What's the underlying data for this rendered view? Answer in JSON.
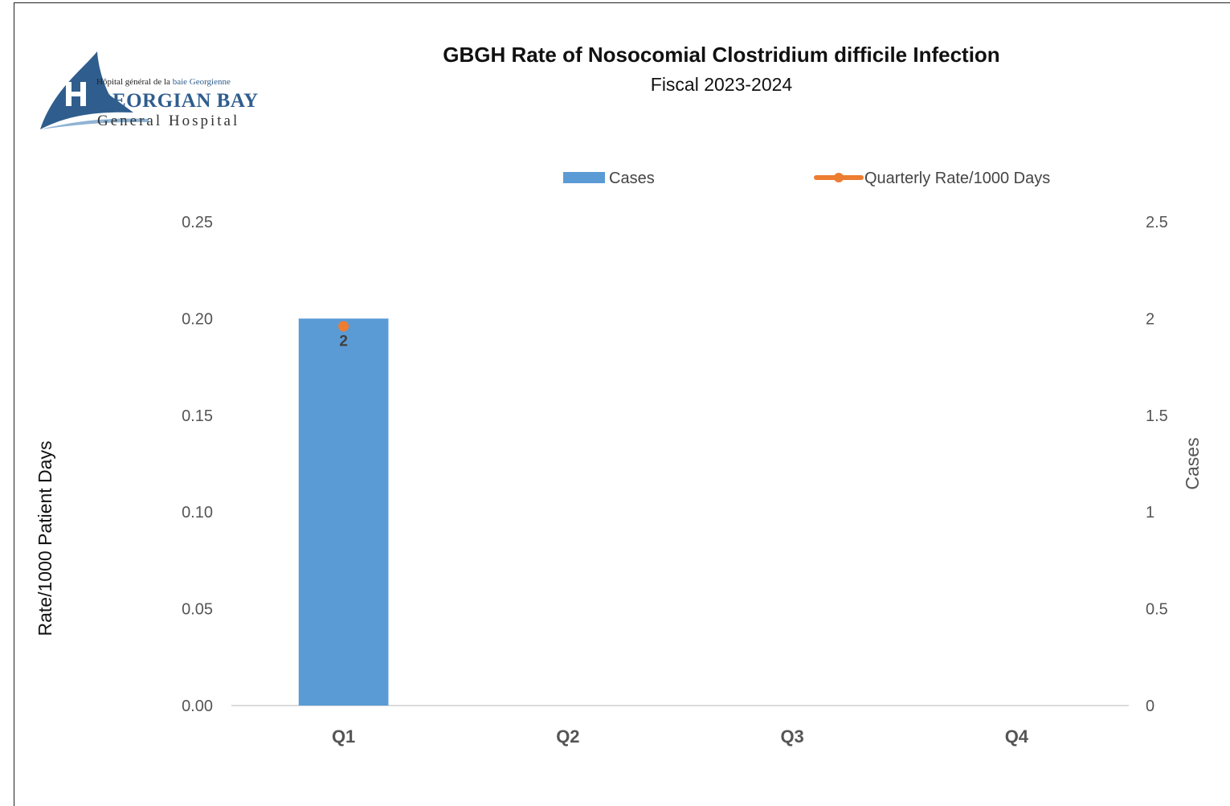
{
  "logo": {
    "line1_prefix": "Hôpital général de la ",
    "line1_accent": "baie Georgienne",
    "line2": "GEORGIAN BAY",
    "line3": "General Hospital",
    "brand_color": "#2f5e8e"
  },
  "chart_data": {
    "type": "bar",
    "title": "GBGH Rate of Nosocomial Clostridium difficile Infection",
    "subtitle": "Fiscal 2023-2024",
    "categories": [
      "Q1",
      "Q2",
      "Q3",
      "Q4"
    ],
    "ylabel_left": "Rate/1000 Patient Days",
    "ylabel_right": "Cases",
    "ylim_left": [
      0,
      0.25
    ],
    "ylim_right": [
      0,
      2.5
    ],
    "yticks_left": [
      "0.00",
      "0.05",
      "0.10",
      "0.15",
      "0.20",
      "0.25"
    ],
    "yticks_right": [
      "0",
      "0.5",
      "1",
      "1.5",
      "2",
      "2.5"
    ],
    "grid": false,
    "legend_position": "top",
    "series": [
      {
        "name": "Cases",
        "type": "bar",
        "axis": "right",
        "color": "#5b9bd5",
        "values": [
          2,
          null,
          null,
          null
        ],
        "data_labels": [
          "2",
          "",
          "",
          ""
        ]
      },
      {
        "name": "Quarterly Rate/1000 Days",
        "type": "line",
        "axis": "left",
        "color": "#ed7d31",
        "values": [
          0.196,
          null,
          null,
          null
        ]
      }
    ]
  }
}
